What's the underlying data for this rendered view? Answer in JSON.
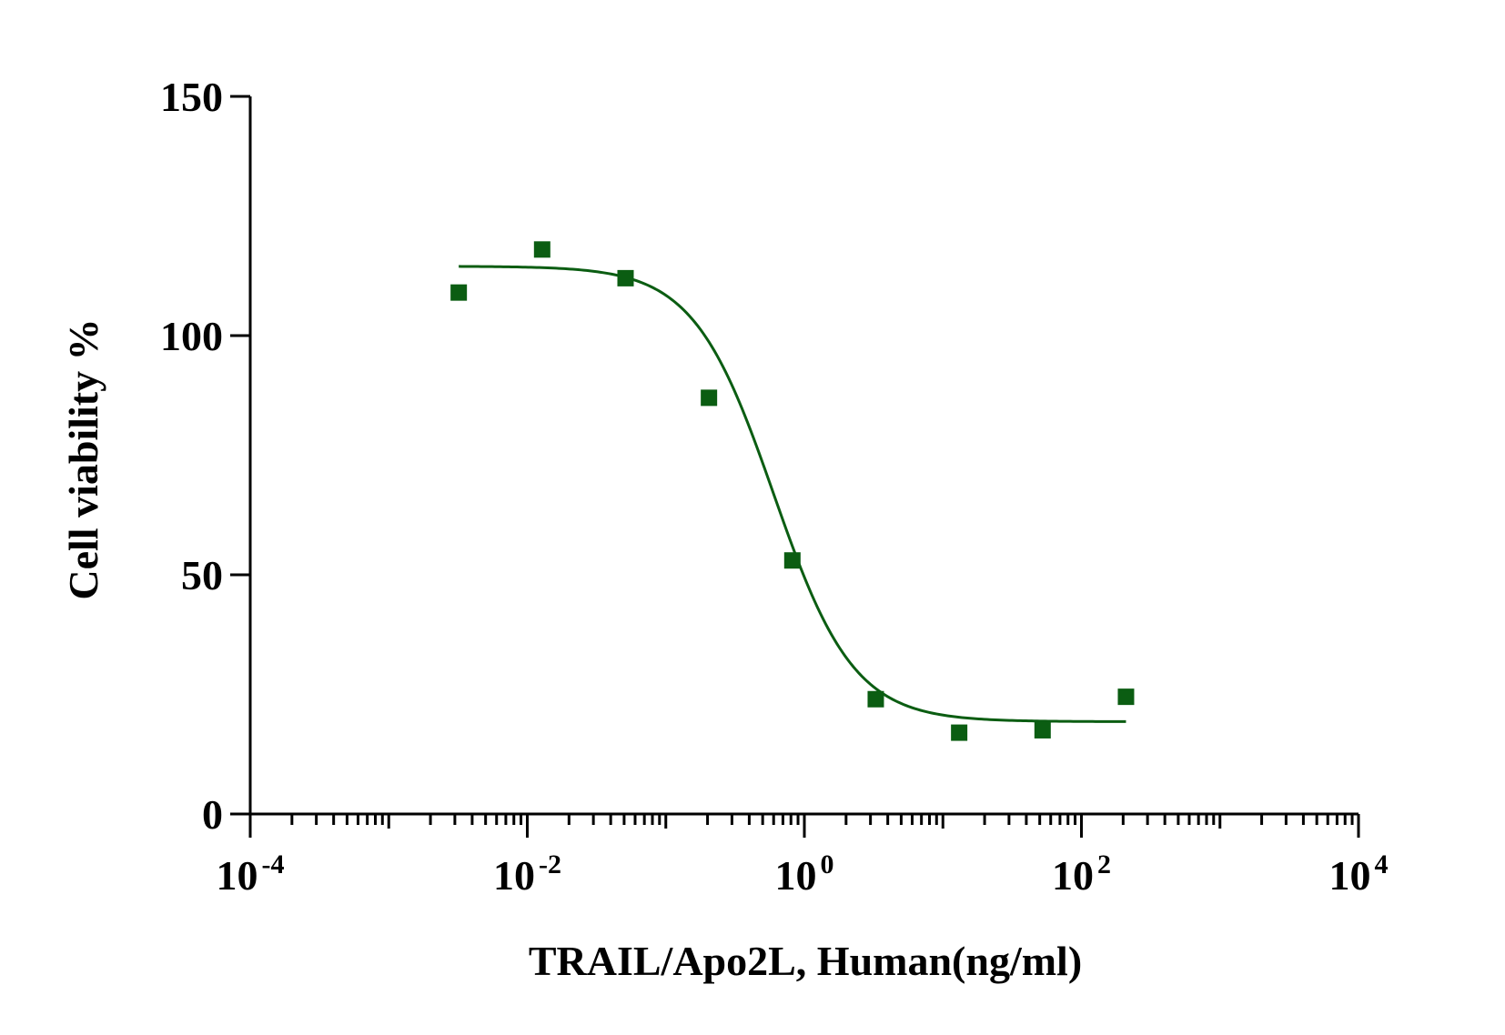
{
  "chart_data": {
    "type": "scatter",
    "title": "",
    "xlabel": "TRAIL/Apo2L, Human(ng/ml)",
    "ylabel": "Cell viability %",
    "xscale": "log",
    "xlim": [
      0.0001,
      10000
    ],
    "ylim": [
      0,
      150
    ],
    "x_ticks": [
      {
        "base": "10",
        "exp": "-4"
      },
      {
        "base": "10",
        "exp": "-2"
      },
      {
        "base": "10",
        "exp": "0"
      },
      {
        "base": "10",
        "exp": "2"
      },
      {
        "base": "10",
        "exp": "4"
      }
    ],
    "y_ticks": [
      "0",
      "50",
      "100",
      "150"
    ],
    "grid": false,
    "legend": "none",
    "color": "#0b5d12",
    "series": [
      {
        "points": [
          {
            "x": 0.0032,
            "y": 109
          },
          {
            "x": 0.0128,
            "y": 118
          },
          {
            "x": 0.0512,
            "y": 112
          },
          {
            "x": 0.2048,
            "y": 87
          },
          {
            "x": 0.8192,
            "y": 53
          },
          {
            "x": 3.2768,
            "y": 24
          },
          {
            "x": 13.1072,
            "y": 17
          },
          {
            "x": 52.4288,
            "y": 17.5
          },
          {
            "x": 209.7152,
            "y": 24.5
          }
        ],
        "fit": {
          "model": "four-parameter logistic",
          "top": 114.5,
          "bottom": 19.3,
          "ec50": 0.6,
          "hill": 1.5,
          "x_range": [
            0.0032,
            209.7152
          ]
        }
      }
    ]
  }
}
